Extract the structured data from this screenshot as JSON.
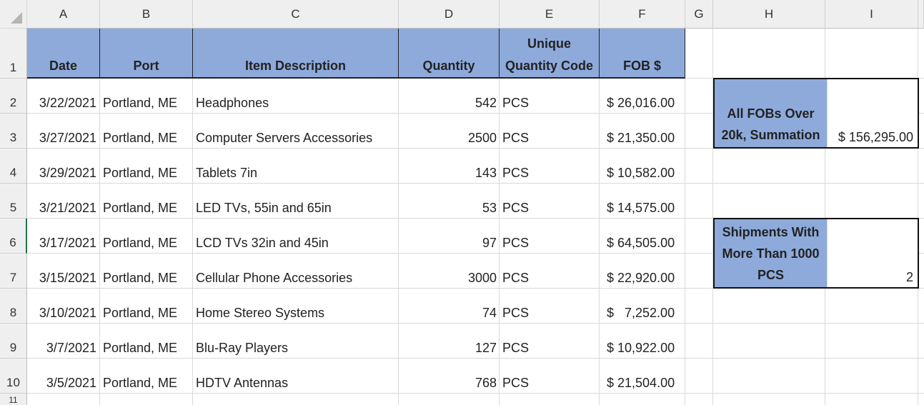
{
  "columns": [
    "A",
    "B",
    "C",
    "D",
    "E",
    "F",
    "G",
    "H",
    "I"
  ],
  "row_numbers": [
    "1",
    "2",
    "3",
    "4",
    "5",
    "6",
    "7",
    "8",
    "9",
    "10",
    "11"
  ],
  "headers": [
    "Date",
    "Port",
    "Item Description",
    "Quantity",
    "Unique Quantity Code",
    "FOB $"
  ],
  "rows": [
    [
      "3/22/2021",
      "Portland, ME",
      "Headphones",
      "542",
      "PCS",
      "$ 26,016.00"
    ],
    [
      "3/27/2021",
      "Portland, ME",
      "Computer Servers Accessories",
      "2500",
      "PCS",
      "$ 21,350.00"
    ],
    [
      "3/29/2021",
      "Portland, ME",
      "Tablets 7in",
      "143",
      "PCS",
      "$ 10,582.00"
    ],
    [
      "3/21/2021",
      "Portland, ME",
      "LED TVs, 55in and 65in",
      "53",
      "PCS",
      "$ 14,575.00"
    ],
    [
      "3/17/2021",
      "Portland, ME",
      "LCD TVs 32in and 45in",
      "97",
      "PCS",
      "$ 64,505.00"
    ],
    [
      "3/15/2021",
      "Portland, ME",
      "Cellular Phone Accessories",
      "3000",
      "PCS",
      "$ 22,920.00"
    ],
    [
      "3/10/2021",
      "Portland, ME",
      "Home Stereo Systems",
      "74",
      "PCS",
      "$   7,252.00"
    ],
    [
      "3/7/2021",
      "Portland, ME",
      "Blu-Ray Players",
      "127",
      "PCS",
      "$ 10,922.00"
    ],
    [
      "3/5/2021",
      "Portland, ME",
      "HDTV Antennas",
      "768",
      "PCS",
      "$ 21,504.00"
    ]
  ],
  "summaries": [
    {
      "label": "All FOBs Over 20k, Summation",
      "value": "$ 156,295.00"
    },
    {
      "label": "Shipments With More Than 1000 PCS",
      "value": "2"
    }
  ],
  "colors": {
    "header_fill": "#8eaadb",
    "active_row_marker": "#217346"
  }
}
